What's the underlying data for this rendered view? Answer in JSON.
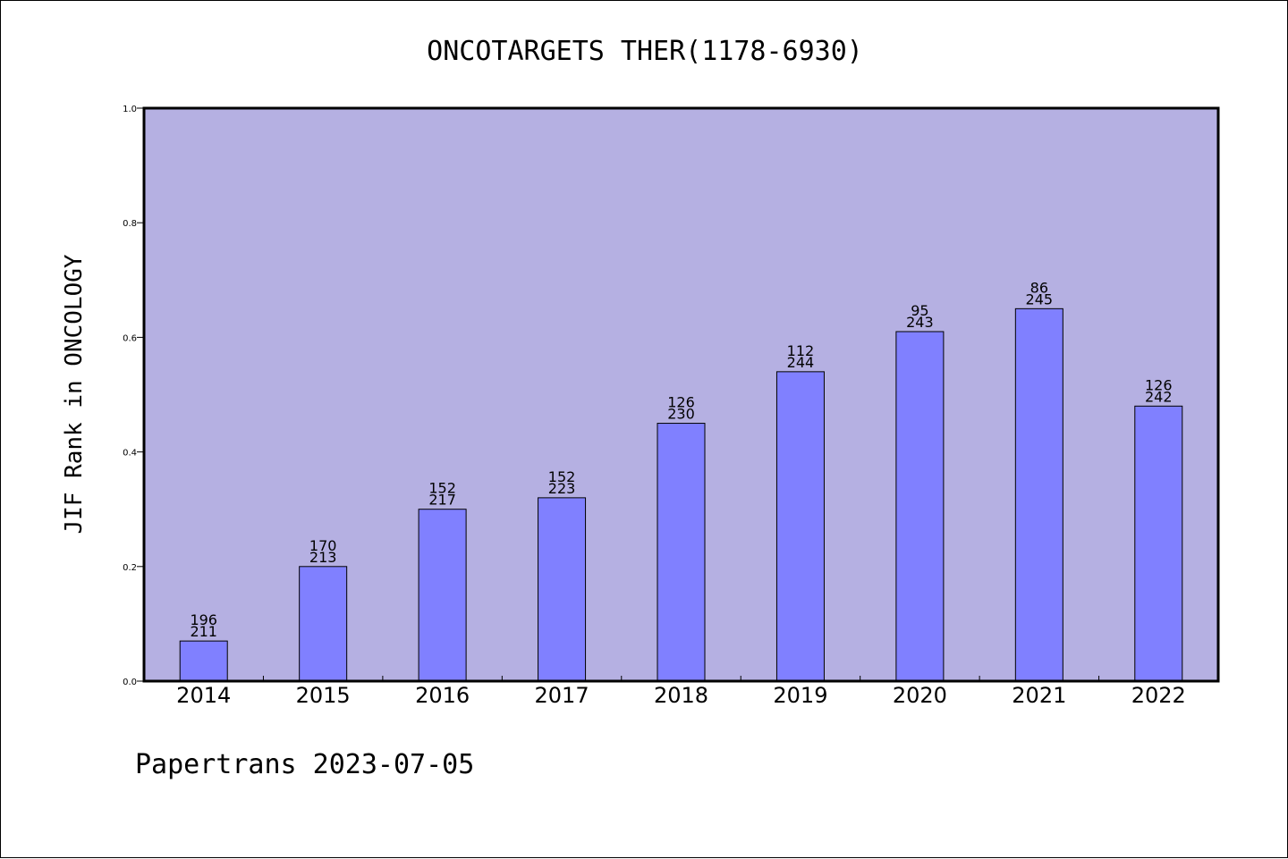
{
  "colors": {
    "plot_background": "#b5b0e2",
    "bar_fill": "#8080ff",
    "bar_stroke": "#000000",
    "axis": "#000000"
  },
  "footer": {
    "text": "Papertrans 2023-07-05"
  },
  "chart_data": {
    "type": "bar",
    "title": "ONCOTARGETS THER(1178-6930)",
    "xlabel": "",
    "ylabel": "JIF Rank in ONCOLOGY",
    "ylim": [
      0,
      1.0
    ],
    "yticks": [
      "0.0",
      "0.2",
      "0.4",
      "0.6",
      "0.8",
      "1.0"
    ],
    "grid": false,
    "categories": [
      "2014",
      "2015",
      "2016",
      "2017",
      "2018",
      "2019",
      "2020",
      "2021",
      "2022"
    ],
    "values": [
      0.07,
      0.2,
      0.3,
      0.32,
      0.45,
      0.54,
      0.61,
      0.65,
      0.48
    ],
    "rank": [
      "196",
      "170",
      "152",
      "152",
      "126",
      "112",
      "95",
      "86",
      "126"
    ],
    "total": [
      "211",
      "213",
      "217",
      "223",
      "230",
      "244",
      "243",
      "245",
      "242"
    ]
  }
}
